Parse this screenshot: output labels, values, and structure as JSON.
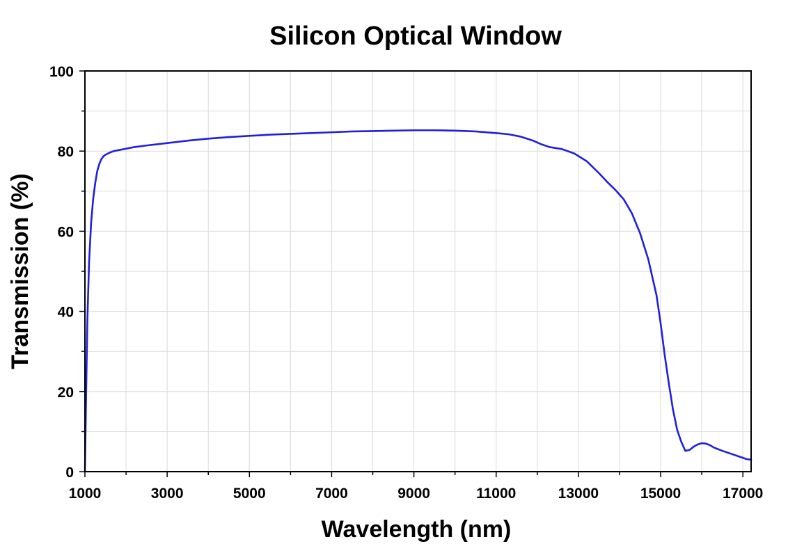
{
  "chart_data": {
    "type": "line",
    "title": "Silicon Optical Window",
    "xlabel": "Wavelength (nm)",
    "ylabel": "Transmission (%)",
    "xlim": [
      1000,
      17200
    ],
    "ylim": [
      0,
      100
    ],
    "x_major_ticks": [
      1000,
      3000,
      5000,
      7000,
      9000,
      11000,
      13000,
      15000,
      17000
    ],
    "x_minor_ticks": [
      2000,
      4000,
      6000,
      8000,
      10000,
      12000,
      14000,
      16000
    ],
    "y_major_ticks": [
      0,
      20,
      40,
      60,
      80,
      100
    ],
    "y_minor_ticks": [
      10,
      30,
      50,
      70,
      90
    ],
    "grid": true,
    "legend": "none",
    "series": [
      {
        "color": "#1f1fe0",
        "x": [
          1000,
          1030,
          1060,
          1100,
          1150,
          1200,
          1250,
          1300,
          1350,
          1400,
          1450,
          1500,
          1600,
          1700,
          1800,
          2000,
          2200,
          2500,
          3000,
          3500,
          4000,
          4500,
          5000,
          5500,
          6000,
          6500,
          7000,
          7500,
          8000,
          8500,
          9000,
          9500,
          10000,
          10500,
          11000,
          11300,
          11600,
          11900,
          12100,
          12300,
          12600,
          12900,
          13200,
          13500,
          13700,
          13900,
          14100,
          14300,
          14500,
          14700,
          14900,
          15000,
          15100,
          15200,
          15300,
          15400,
          15500,
          15600,
          15700,
          15800,
          15900,
          16000,
          16100,
          16200,
          16300,
          16500,
          16700,
          16900,
          17100,
          17200
        ],
        "y": [
          0,
          20,
          38,
          52,
          62,
          68,
          72,
          75,
          76.8,
          78,
          78.7,
          79.1,
          79.6,
          80,
          80.2,
          80.6,
          81,
          81.4,
          82,
          82.6,
          83.1,
          83.5,
          83.8,
          84.1,
          84.3,
          84.5,
          84.7,
          84.9,
          85,
          85.1,
          85.2,
          85.2,
          85.1,
          84.9,
          84.5,
          84.2,
          83.6,
          82.6,
          81.7,
          81,
          80.5,
          79.4,
          77.5,
          74.5,
          72.3,
          70.3,
          68,
          64.5,
          59.5,
          53,
          44,
          37,
          29,
          22,
          15.5,
          10.5,
          7.5,
          5.2,
          5.4,
          6.2,
          6.8,
          7.1,
          7,
          6.6,
          6,
          5.2,
          4.5,
          3.8,
          3.1,
          3
        ]
      }
    ]
  }
}
